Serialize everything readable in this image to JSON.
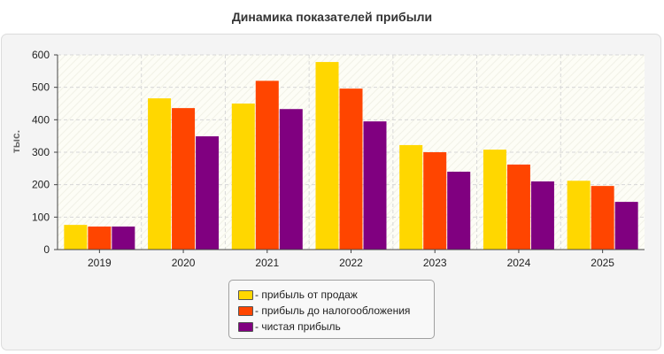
{
  "chart_data": {
    "type": "bar",
    "title": "Динамика показателей прибыли",
    "xlabel": "",
    "ylabel": "тыс.",
    "ylim": [
      0,
      600
    ],
    "yticks": [
      0,
      100,
      200,
      300,
      400,
      500,
      600
    ],
    "categories": [
      "2019",
      "2020",
      "2021",
      "2022",
      "2023",
      "2024",
      "2025"
    ],
    "grid": true,
    "legend_position": "bottom-center",
    "series": [
      {
        "name": "- прибыль от продаж",
        "color": "#FFD700",
        "values": [
          76,
          466,
          450,
          578,
          322,
          308,
          212
        ]
      },
      {
        "name": "- прибыль до налогообложения",
        "color": "#FF4500",
        "values": [
          71,
          436,
          520,
          496,
          300,
          262,
          196
        ]
      },
      {
        "name": "- чистая прибыль",
        "color": "#800080",
        "values": [
          71,
          349,
          433,
          395,
          240,
          210,
          147
        ]
      }
    ]
  }
}
